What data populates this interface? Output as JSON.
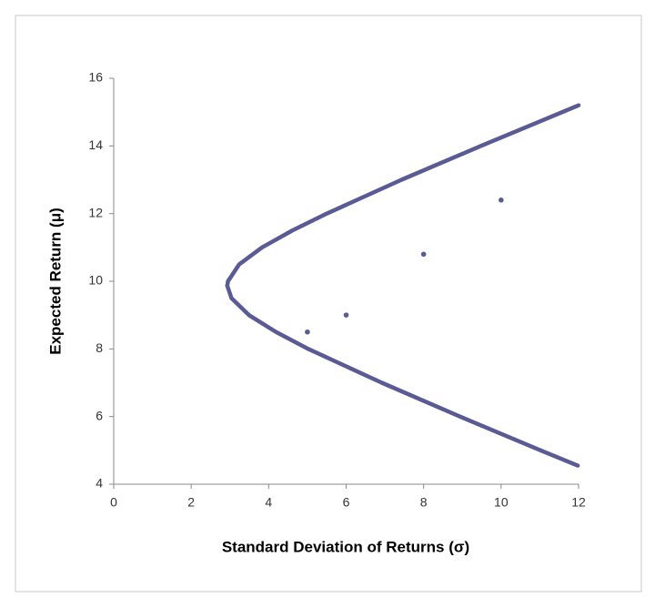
{
  "chart_data": {
    "type": "scatter",
    "x_label": "Standard Deviation of Returns (σ)",
    "y_label": "Expected Return (μ)",
    "xlim": [
      0,
      12
    ],
    "xticks": [
      0,
      2,
      4,
      6,
      8,
      10,
      12
    ],
    "ylim": [
      4,
      16
    ],
    "yticks": [
      4,
      6,
      8,
      10,
      12,
      14,
      16
    ],
    "grid": false,
    "series": [
      {
        "mode": "line",
        "color": "#5a5a94",
        "x": [
          11.98,
          11.02,
          8.94,
          6.92,
          5.02,
          4.19,
          3.49,
          3.04,
          2.93,
          2.95,
          3.24,
          3.83,
          4.61,
          5.5,
          7.43,
          9.48,
          12.0
        ],
        "y": [
          4.55,
          5,
          6,
          7,
          8,
          8.5,
          9,
          9.5,
          9.87,
          10,
          10.5,
          11,
          11.5,
          12,
          13,
          14,
          15.2
        ]
      },
      {
        "mode": "markers",
        "color": "#5a5a94",
        "x": [
          5,
          6,
          8,
          10
        ],
        "y": [
          8.5,
          9,
          10.8,
          12.4
        ]
      }
    ]
  }
}
